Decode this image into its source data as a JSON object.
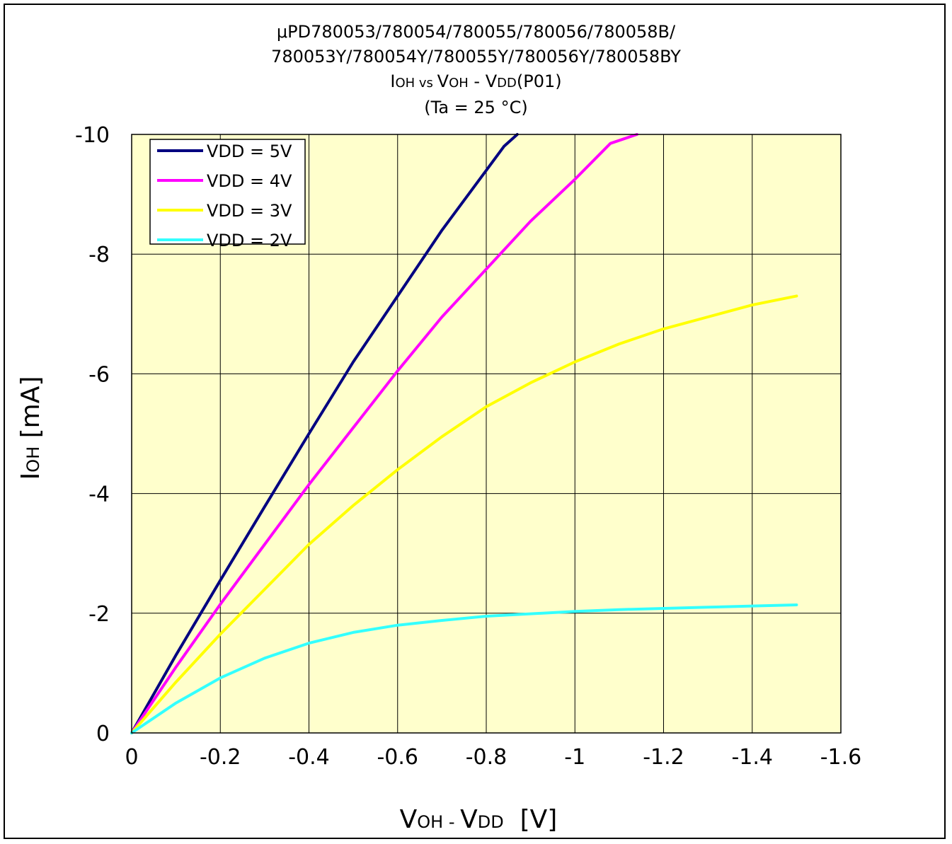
{
  "chart_data": {
    "type": "line",
    "title": "μPD780053/780054/780055/780056/780058B/",
    "title_line2": "780053Y/780054Y/780055Y/780056Y/780058BY",
    "subtitle": {
      "main1": "I",
      "sub1": "OH",
      "vs": " vs ",
      "main2": "V",
      "sub2": "OH",
      "dash": " - ",
      "main3": "V",
      "sub3": "DD",
      "tail": "(P01)"
    },
    "condition": "(Ta = 25 °C)",
    "xlabel": {
      "m1": "V",
      "s1": "OH",
      "dash": " - ",
      "m2": "V",
      "s2": "DD",
      "unit": "  [V]"
    },
    "ylabel": {
      "m1": "I",
      "s1": "OH",
      "unit": " [mA]"
    },
    "xlim": [
      0,
      -1.6
    ],
    "ylim": [
      0,
      -10
    ],
    "x_ticks": [
      "0",
      "-0.2",
      "-0.4",
      "-0.6",
      "-0.8",
      "-1",
      "-1.2",
      "-1.4",
      "-1.6"
    ],
    "y_ticks": [
      "0",
      "-2",
      "-4",
      "-6",
      "-8",
      "-10"
    ],
    "x_tick_values": [
      0,
      -0.2,
      -0.4,
      -0.6,
      -0.8,
      -1.0,
      -1.2,
      -1.4,
      -1.6
    ],
    "y_tick_values": [
      0,
      -2,
      -4,
      -6,
      -8,
      -10
    ],
    "grid": true,
    "legend_position": "top-left",
    "plot_background": "#ffffcc",
    "series": [
      {
        "name": "VDD = 5V",
        "color": "#000080",
        "x": [
          0,
          -0.1,
          -0.2,
          -0.3,
          -0.4,
          -0.5,
          -0.6,
          -0.7,
          -0.8,
          -0.84,
          -0.87
        ],
        "y": [
          0,
          -1.3,
          -2.55,
          -3.78,
          -5.0,
          -6.2,
          -7.3,
          -8.4,
          -9.4,
          -9.8,
          -10.0
        ]
      },
      {
        "name": "VDD = 4V",
        "color": "#ff00ff",
        "x": [
          0,
          -0.1,
          -0.2,
          -0.3,
          -0.4,
          -0.5,
          -0.6,
          -0.7,
          -0.8,
          -0.9,
          -1.0,
          -1.08,
          -1.14
        ],
        "y": [
          0,
          -1.1,
          -2.15,
          -3.15,
          -4.15,
          -5.1,
          -6.05,
          -6.95,
          -7.75,
          -8.55,
          -9.25,
          -9.85,
          -10.0
        ]
      },
      {
        "name": "VDD = 3V",
        "color": "#ffff00",
        "x": [
          0,
          -0.1,
          -0.2,
          -0.3,
          -0.4,
          -0.5,
          -0.6,
          -0.7,
          -0.8,
          -0.9,
          -1.0,
          -1.1,
          -1.2,
          -1.3,
          -1.4,
          -1.5
        ],
        "y": [
          0,
          -0.85,
          -1.65,
          -2.4,
          -3.15,
          -3.8,
          -4.4,
          -4.95,
          -5.45,
          -5.85,
          -6.2,
          -6.5,
          -6.75,
          -6.95,
          -7.15,
          -7.3
        ]
      },
      {
        "name": "VDD = 2V",
        "color": "#33ffff",
        "x": [
          0,
          -0.1,
          -0.2,
          -0.3,
          -0.4,
          -0.5,
          -0.6,
          -0.7,
          -0.8,
          -0.9,
          -1.0,
          -1.1,
          -1.2,
          -1.3,
          -1.4,
          -1.5
        ],
        "y": [
          0,
          -0.5,
          -0.92,
          -1.25,
          -1.5,
          -1.68,
          -1.8,
          -1.88,
          -1.95,
          -1.99,
          -2.03,
          -2.06,
          -2.08,
          -2.1,
          -2.12,
          -2.14
        ]
      }
    ]
  }
}
